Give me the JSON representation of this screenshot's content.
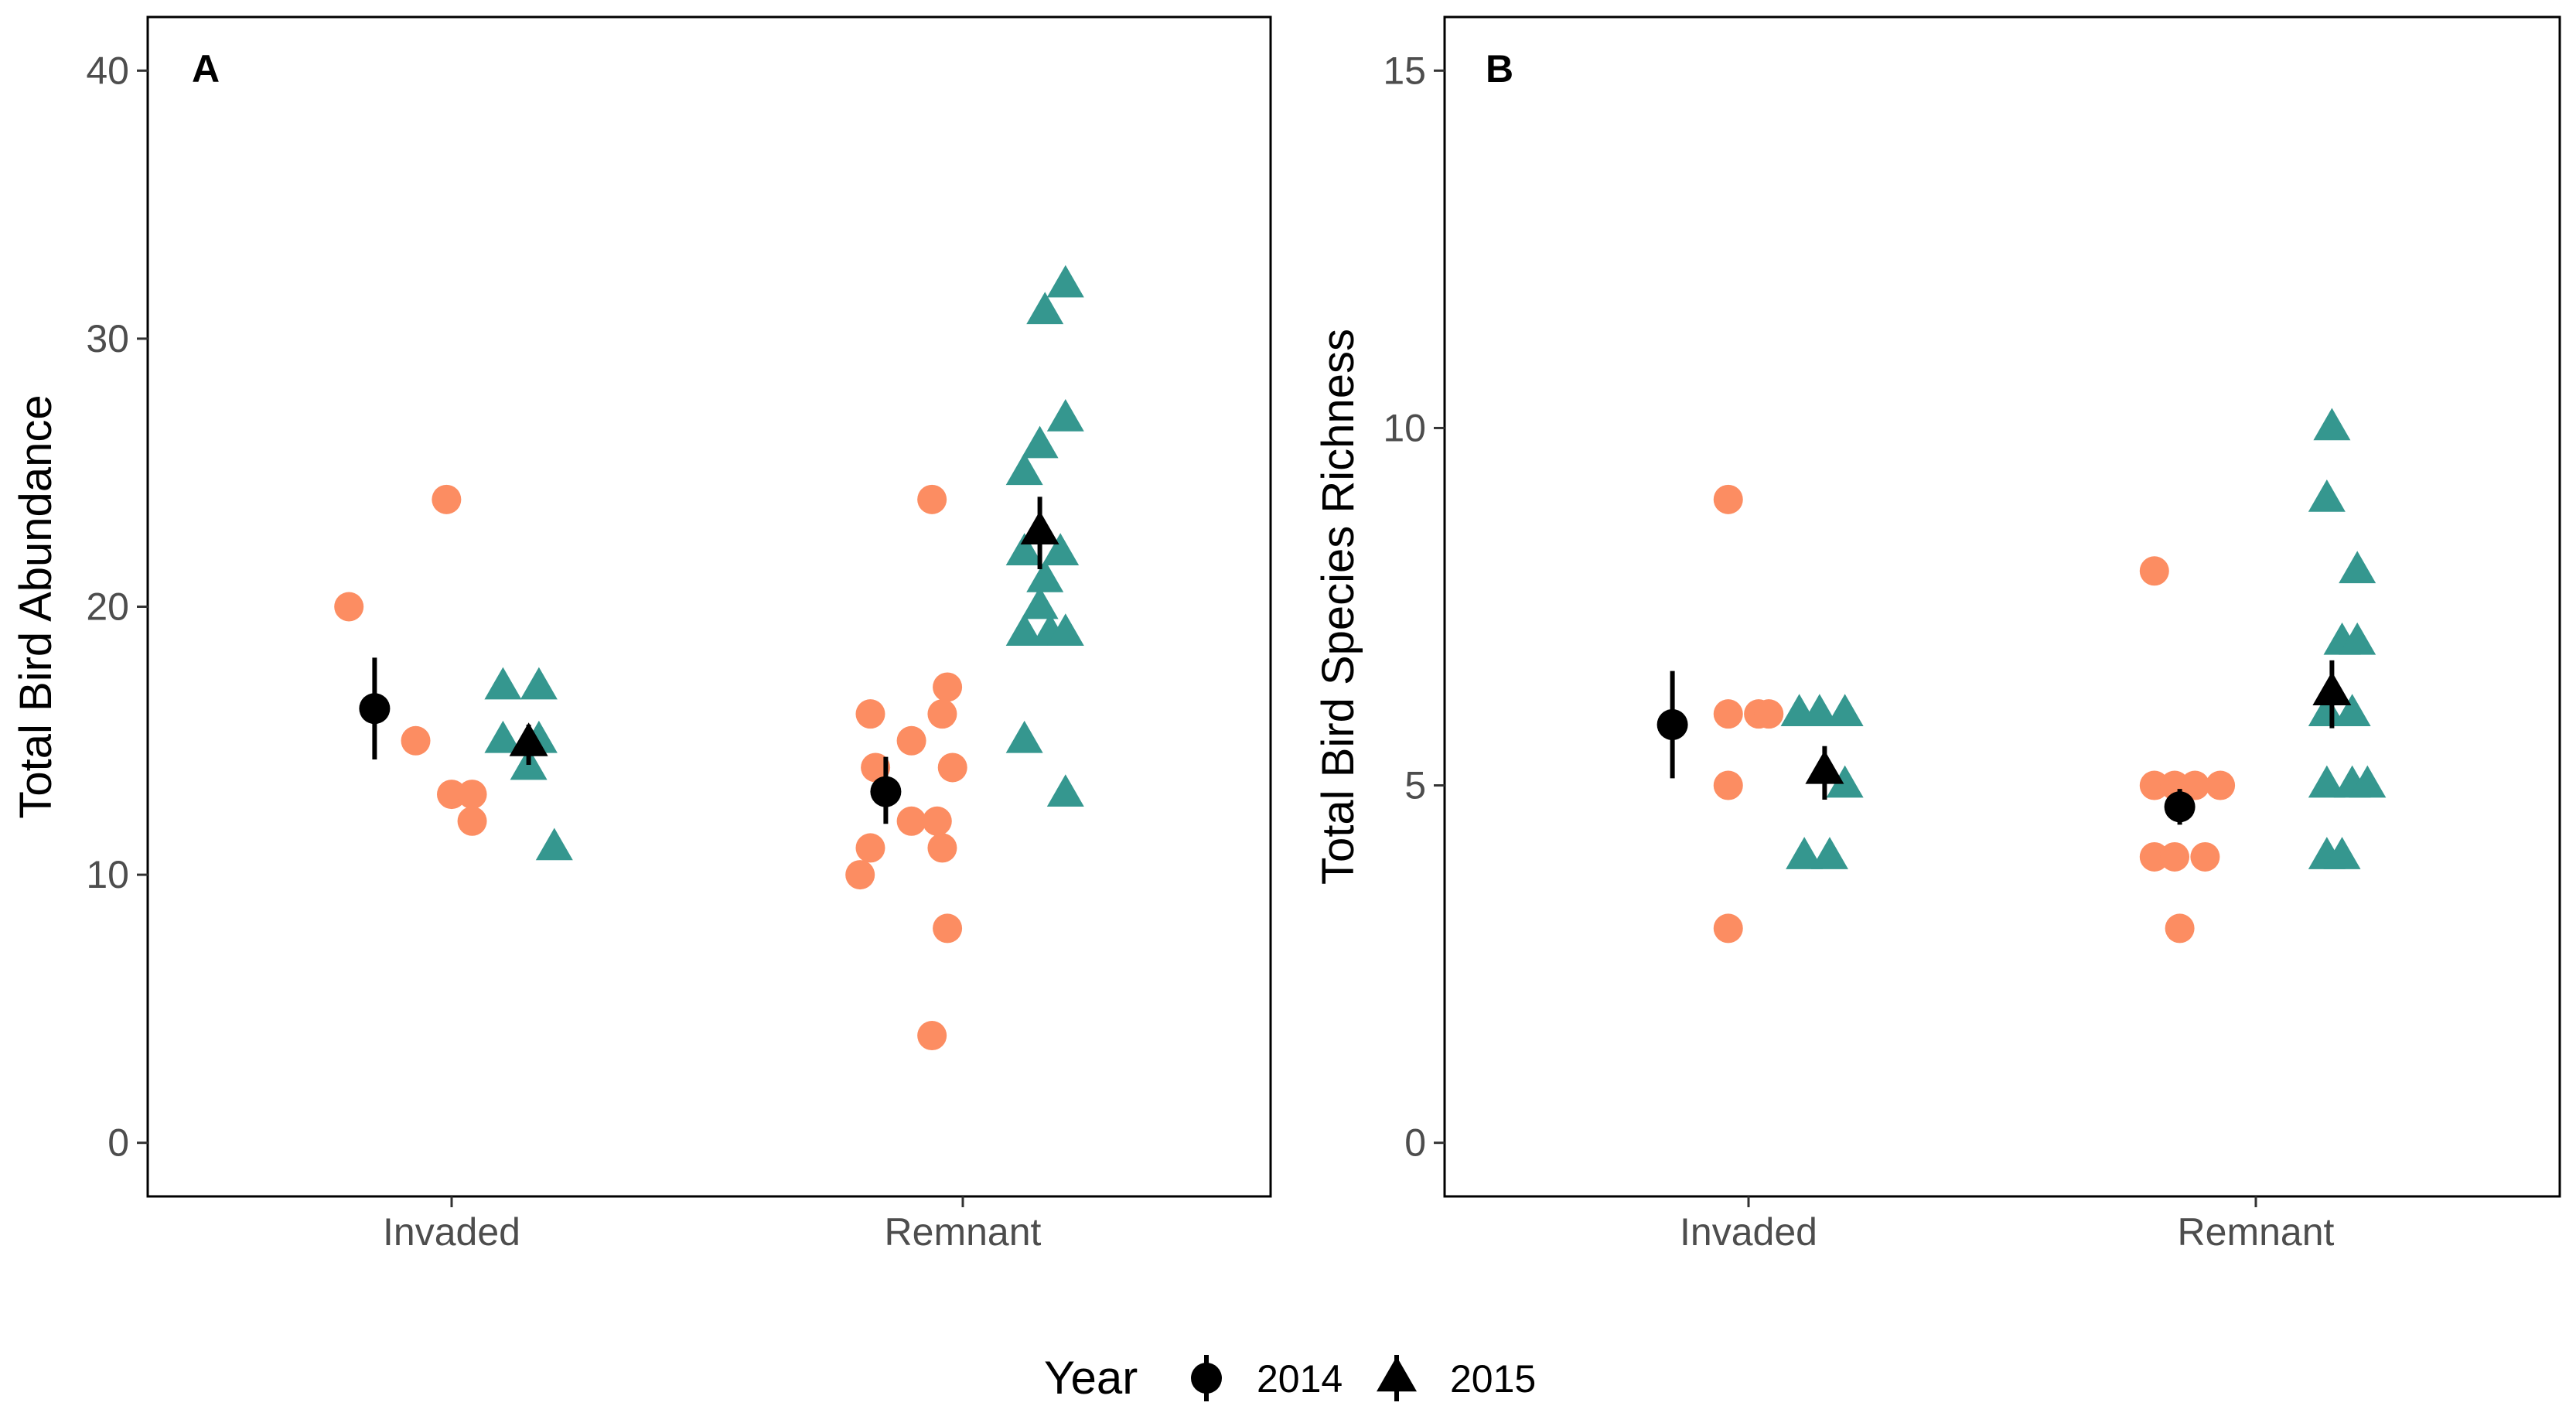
{
  "legend": {
    "title": "Year",
    "entries": [
      {
        "label": "2014",
        "shape": "circle"
      },
      {
        "label": "2015",
        "shape": "triangle"
      }
    ]
  },
  "colors": {
    "2014": "#FC8D62",
    "2015": "#35978F",
    "summary": "#000000"
  },
  "chart_data": [
    {
      "type": "scatter",
      "panel_tag": "A",
      "ylabel": "Total Bird Abundance",
      "xlabel": "",
      "categories": [
        "Invaded",
        "Remnant"
      ],
      "ylim": [
        -2,
        42
      ],
      "yticks": [
        0,
        10,
        20,
        30,
        40
      ],
      "grid": false,
      "series": [
        {
          "name": "2014",
          "shape": "circle",
          "points": [
            {
              "category": "Invaded",
              "offset": -0.2,
              "y": 20
            },
            {
              "category": "Invaded",
              "offset": -0.01,
              "y": 24
            },
            {
              "category": "Invaded",
              "offset": -0.07,
              "y": 15
            },
            {
              "category": "Invaded",
              "offset": 0.0,
              "y": 13
            },
            {
              "category": "Invaded",
              "offset": 0.04,
              "y": 13
            },
            {
              "category": "Invaded",
              "offset": 0.04,
              "y": 12
            },
            {
              "category": "Remnant",
              "offset": -0.18,
              "y": 16
            },
            {
              "category": "Remnant",
              "offset": -0.17,
              "y": 14
            },
            {
              "category": "Remnant",
              "offset": -0.18,
              "y": 11
            },
            {
              "category": "Remnant",
              "offset": -0.2,
              "y": 10
            },
            {
              "category": "Remnant",
              "offset": -0.1,
              "y": 15
            },
            {
              "category": "Remnant",
              "offset": -0.1,
              "y": 12
            },
            {
              "category": "Remnant",
              "offset": -0.05,
              "y": 12
            },
            {
              "category": "Remnant",
              "offset": -0.06,
              "y": 24
            },
            {
              "category": "Remnant",
              "offset": -0.04,
              "y": 16
            },
            {
              "category": "Remnant",
              "offset": -0.03,
              "y": 17
            },
            {
              "category": "Remnant",
              "offset": -0.02,
              "y": 14
            },
            {
              "category": "Remnant",
              "offset": -0.04,
              "y": 11
            },
            {
              "category": "Remnant",
              "offset": -0.03,
              "y": 8
            },
            {
              "category": "Remnant",
              "offset": -0.06,
              "y": 4
            }
          ]
        },
        {
          "name": "2015",
          "shape": "triangle",
          "points": [
            {
              "category": "Invaded",
              "offset": 0.1,
              "y": 17
            },
            {
              "category": "Invaded",
              "offset": 0.17,
              "y": 17
            },
            {
              "category": "Invaded",
              "offset": 0.1,
              "y": 15
            },
            {
              "category": "Invaded",
              "offset": 0.17,
              "y": 15
            },
            {
              "category": "Invaded",
              "offset": 0.15,
              "y": 14
            },
            {
              "category": "Invaded",
              "offset": 0.2,
              "y": 11
            },
            {
              "category": "Remnant",
              "offset": 0.12,
              "y": 25
            },
            {
              "category": "Remnant",
              "offset": 0.12,
              "y": 22
            },
            {
              "category": "Remnant",
              "offset": 0.12,
              "y": 15
            },
            {
              "category": "Remnant",
              "offset": 0.12,
              "y": 19
            },
            {
              "category": "Remnant",
              "offset": 0.16,
              "y": 31
            },
            {
              "category": "Remnant",
              "offset": 0.15,
              "y": 26
            },
            {
              "category": "Remnant",
              "offset": 0.16,
              "y": 21
            },
            {
              "category": "Remnant",
              "offset": 0.15,
              "y": 20
            },
            {
              "category": "Remnant",
              "offset": 0.17,
              "y": 19
            },
            {
              "category": "Remnant",
              "offset": 0.2,
              "y": 32
            },
            {
              "category": "Remnant",
              "offset": 0.2,
              "y": 27
            },
            {
              "category": "Remnant",
              "offset": 0.19,
              "y": 22
            },
            {
              "category": "Remnant",
              "offset": 0.2,
              "y": 19
            },
            {
              "category": "Remnant",
              "offset": 0.2,
              "y": 13
            }
          ]
        }
      ],
      "summary": [
        {
          "year": "2014",
          "shape": "circle",
          "category": "Invaded",
          "offset": -0.15,
          "mean": 16.2,
          "low": 14.3,
          "high": 18.1
        },
        {
          "year": "2015",
          "shape": "triangle",
          "category": "Invaded",
          "offset": 0.15,
          "mean": 14.9,
          "low": 14.1,
          "high": 15.6
        },
        {
          "year": "2014",
          "shape": "circle",
          "category": "Remnant",
          "offset": -0.15,
          "mean": 13.1,
          "low": 11.9,
          "high": 14.4
        },
        {
          "year": "2015",
          "shape": "triangle",
          "category": "Remnant",
          "offset": 0.15,
          "mean": 22.8,
          "low": 21.4,
          "high": 24.1
        }
      ]
    },
    {
      "type": "scatter",
      "panel_tag": "B",
      "ylabel": "Total Bird Species Richness",
      "xlabel": "",
      "categories": [
        "Invaded",
        "Remnant"
      ],
      "ylim": [
        -0.75,
        15.75
      ],
      "yticks": [
        0,
        5,
        10,
        15
      ],
      "grid": false,
      "series": [
        {
          "name": "2014",
          "shape": "circle",
          "points": [
            {
              "category": "Invaded",
              "offset": -0.04,
              "y": 9
            },
            {
              "category": "Invaded",
              "offset": -0.04,
              "y": 6
            },
            {
              "category": "Invaded",
              "offset": 0.02,
              "y": 6
            },
            {
              "category": "Invaded",
              "offset": 0.04,
              "y": 6
            },
            {
              "category": "Invaded",
              "offset": -0.04,
              "y": 5
            },
            {
              "category": "Invaded",
              "offset": -0.04,
              "y": 3
            },
            {
              "category": "Remnant",
              "offset": -0.2,
              "y": 8
            },
            {
              "category": "Remnant",
              "offset": -0.2,
              "y": 5
            },
            {
              "category": "Remnant",
              "offset": -0.16,
              "y": 5
            },
            {
              "category": "Remnant",
              "offset": -0.12,
              "y": 5
            },
            {
              "category": "Remnant",
              "offset": -0.07,
              "y": 5
            },
            {
              "category": "Remnant",
              "offset": -0.2,
              "y": 4
            },
            {
              "category": "Remnant",
              "offset": -0.16,
              "y": 4
            },
            {
              "category": "Remnant",
              "offset": -0.1,
              "y": 4
            },
            {
              "category": "Remnant",
              "offset": -0.15,
              "y": 3
            }
          ]
        },
        {
          "name": "2015",
          "shape": "triangle",
          "points": [
            {
              "category": "Invaded",
              "offset": 0.1,
              "y": 6
            },
            {
              "category": "Invaded",
              "offset": 0.14,
              "y": 6
            },
            {
              "category": "Invaded",
              "offset": 0.19,
              "y": 6
            },
            {
              "category": "Invaded",
              "offset": 0.19,
              "y": 5
            },
            {
              "category": "Invaded",
              "offset": 0.11,
              "y": 4
            },
            {
              "category": "Invaded",
              "offset": 0.16,
              "y": 4
            },
            {
              "category": "Remnant",
              "offset": 0.15,
              "y": 10
            },
            {
              "category": "Remnant",
              "offset": 0.14,
              "y": 9
            },
            {
              "category": "Remnant",
              "offset": 0.2,
              "y": 8
            },
            {
              "category": "Remnant",
              "offset": 0.17,
              "y": 7
            },
            {
              "category": "Remnant",
              "offset": 0.2,
              "y": 7
            },
            {
              "category": "Remnant",
              "offset": 0.14,
              "y": 6
            },
            {
              "category": "Remnant",
              "offset": 0.19,
              "y": 6
            },
            {
              "category": "Remnant",
              "offset": 0.14,
              "y": 5
            },
            {
              "category": "Remnant",
              "offset": 0.19,
              "y": 5
            },
            {
              "category": "Remnant",
              "offset": 0.22,
              "y": 5
            },
            {
              "category": "Remnant",
              "offset": 0.14,
              "y": 4
            },
            {
              "category": "Remnant",
              "offset": 0.17,
              "y": 4
            }
          ]
        }
      ],
      "summary": [
        {
          "year": "2014",
          "shape": "circle",
          "category": "Invaded",
          "offset": -0.15,
          "mean": 5.85,
          "low": 5.1,
          "high": 6.6
        },
        {
          "year": "2015",
          "shape": "triangle",
          "category": "Invaded",
          "offset": 0.15,
          "mean": 5.2,
          "low": 4.8,
          "high": 5.55
        },
        {
          "year": "2014",
          "shape": "circle",
          "category": "Remnant",
          "offset": -0.15,
          "mean": 4.7,
          "low": 4.45,
          "high": 4.95
        },
        {
          "year": "2015",
          "shape": "triangle",
          "category": "Remnant",
          "offset": 0.15,
          "mean": 6.3,
          "low": 5.8,
          "high": 6.75
        }
      ]
    }
  ]
}
